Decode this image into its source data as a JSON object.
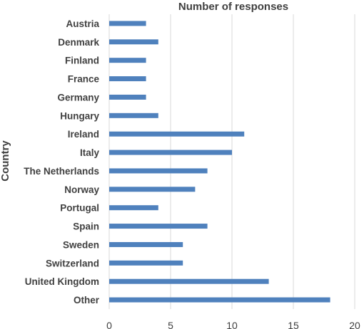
{
  "chart_data": {
    "type": "bar",
    "orientation": "horizontal",
    "title": "Number of responses",
    "xlabel": "",
    "ylabel": "Country",
    "categories": [
      "Austria",
      "Denmark",
      "Finland",
      "France",
      "Germany",
      "Hungary",
      "Ireland",
      "Italy",
      "The Netherlands",
      "Norway",
      "Portugal",
      "Spain",
      "Sweden",
      "Switzerland",
      "United Kingdom",
      "Other"
    ],
    "values": [
      3,
      4,
      3,
      3,
      3,
      4,
      11,
      10,
      8,
      7,
      4,
      8,
      6,
      6,
      13,
      18
    ],
    "xlim": [
      0,
      20
    ],
    "xticks": [
      0,
      5,
      10,
      15,
      20
    ],
    "grid": true,
    "bar_color": "#4f81bd",
    "grid_color": "#d9d9d9",
    "text_color": "#404040"
  }
}
